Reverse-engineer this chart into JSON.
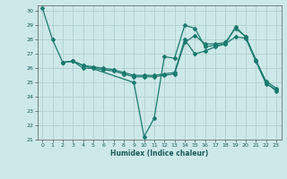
{
  "xlabel": "Humidex (Indice chaleur)",
  "ylabel": "",
  "xlim": [
    -0.5,
    23.5
  ],
  "ylim": [
    21,
    30.4
  ],
  "yticks": [
    21,
    22,
    23,
    24,
    25,
    26,
    27,
    28,
    29,
    30
  ],
  "xticks": [
    0,
    1,
    2,
    3,
    4,
    5,
    6,
    7,
    8,
    9,
    10,
    11,
    12,
    13,
    14,
    15,
    16,
    17,
    18,
    19,
    20,
    21,
    22,
    23
  ],
  "bg_color": "#cde8e8",
  "grid_color": "#b0d0d0",
  "line_color": "#1a7a6e",
  "line1_x": [
    0,
    1,
    2,
    3,
    4,
    9,
    10,
    11,
    12,
    13,
    14,
    15,
    16,
    17,
    18,
    19,
    20,
    21,
    22,
    23
  ],
  "line1_y": [
    30.2,
    28.0,
    26.4,
    26.5,
    26.2,
    25.0,
    21.2,
    22.5,
    26.8,
    26.7,
    29.0,
    28.8,
    27.5,
    27.6,
    27.7,
    28.9,
    28.2,
    26.6,
    25.0,
    24.4
  ],
  "line2_x": [
    2,
    3,
    4,
    5,
    6,
    7,
    8,
    9,
    10,
    11,
    12,
    13,
    14,
    15,
    16,
    17,
    18,
    19,
    20,
    21,
    22,
    23
  ],
  "line2_y": [
    26.4,
    26.5,
    26.2,
    26.1,
    26.0,
    25.9,
    25.7,
    25.5,
    25.5,
    25.5,
    25.6,
    25.7,
    28.0,
    27.0,
    27.2,
    27.5,
    27.7,
    28.2,
    28.1,
    26.5,
    25.1,
    24.6
  ],
  "line3_x": [
    2,
    3,
    4,
    5,
    6,
    7,
    8,
    9,
    10,
    11,
    12,
    13,
    14,
    15,
    16,
    17,
    18,
    19,
    20,
    21,
    22,
    23
  ],
  "line3_y": [
    26.4,
    26.5,
    26.0,
    26.0,
    25.9,
    25.8,
    25.6,
    25.4,
    25.4,
    25.4,
    25.5,
    25.6,
    27.8,
    28.3,
    27.7,
    27.7,
    27.8,
    28.8,
    28.2,
    26.5,
    24.9,
    24.5
  ]
}
